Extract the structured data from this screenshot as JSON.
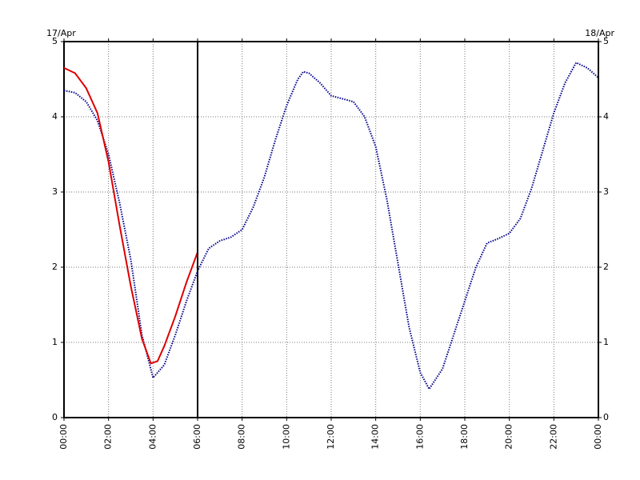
{
  "chart_data": {
    "type": "line",
    "start_label": "17/Apr",
    "end_label": "18/Apr",
    "xlim": [
      0,
      24
    ],
    "xticks": [
      {
        "value": 0,
        "label": "00:00"
      },
      {
        "value": 2,
        "label": "02:00"
      },
      {
        "value": 4,
        "label": "04:00"
      },
      {
        "value": 6,
        "label": "06:00"
      },
      {
        "value": 8,
        "label": "08:00"
      },
      {
        "value": 10,
        "label": "10:00"
      },
      {
        "value": 12,
        "label": "12:00"
      },
      {
        "value": 14,
        "label": "14:00"
      },
      {
        "value": 16,
        "label": "16:00"
      },
      {
        "value": 18,
        "label": "18:00"
      },
      {
        "value": 20,
        "label": "20:00"
      },
      {
        "value": 22,
        "label": "22:00"
      },
      {
        "value": 24,
        "label": "00:00"
      }
    ],
    "ylim": [
      0,
      5
    ],
    "yticks": [
      0,
      1,
      2,
      3,
      4,
      5
    ],
    "y2lim": [
      0,
      5
    ],
    "y2ticks": [
      0,
      1,
      2,
      3,
      4,
      5
    ],
    "grid": true,
    "now_marker": 6,
    "series": [
      {
        "color": "#00008b",
        "style": "dotted",
        "x": [
          0,
          0.5,
          1,
          1.5,
          2,
          2.5,
          3,
          3.5,
          4,
          4.5,
          5,
          5.5,
          6,
          6.5,
          7,
          7.5,
          8,
          8.5,
          9,
          9.5,
          10,
          10.5,
          10.75,
          11,
          11.5,
          12,
          12.5,
          13,
          13.5,
          14,
          14.5,
          15,
          15.5,
          16,
          16.4,
          17,
          17.5,
          18,
          18.5,
          19,
          19.5,
          20,
          20.5,
          21,
          21.5,
          22,
          22.5,
          23,
          23.5,
          24
        ],
        "values": [
          4.35,
          4.32,
          4.2,
          3.95,
          3.5,
          2.85,
          2.1,
          1.1,
          0.53,
          0.7,
          1.1,
          1.55,
          1.95,
          2.25,
          2.35,
          2.4,
          2.5,
          2.8,
          3.2,
          3.7,
          4.15,
          4.5,
          4.6,
          4.58,
          4.45,
          4.28,
          4.24,
          4.2,
          4.0,
          3.6,
          2.9,
          2.05,
          1.2,
          0.6,
          0.38,
          0.65,
          1.1,
          1.55,
          2.0,
          2.32,
          2.38,
          2.45,
          2.65,
          3.05,
          3.55,
          4.05,
          4.45,
          4.72,
          4.65,
          4.52
        ]
      },
      {
        "color": "#dd0000",
        "style": "solid",
        "x": [
          0,
          0.5,
          1,
          1.5,
          2,
          2.5,
          3,
          3.5,
          3.9,
          4.2,
          4.5,
          5,
          5.5,
          6
        ],
        "values": [
          4.65,
          4.58,
          4.38,
          4.05,
          3.4,
          2.55,
          1.75,
          1.05,
          0.72,
          0.75,
          0.95,
          1.35,
          1.8,
          2.2
        ]
      }
    ]
  }
}
